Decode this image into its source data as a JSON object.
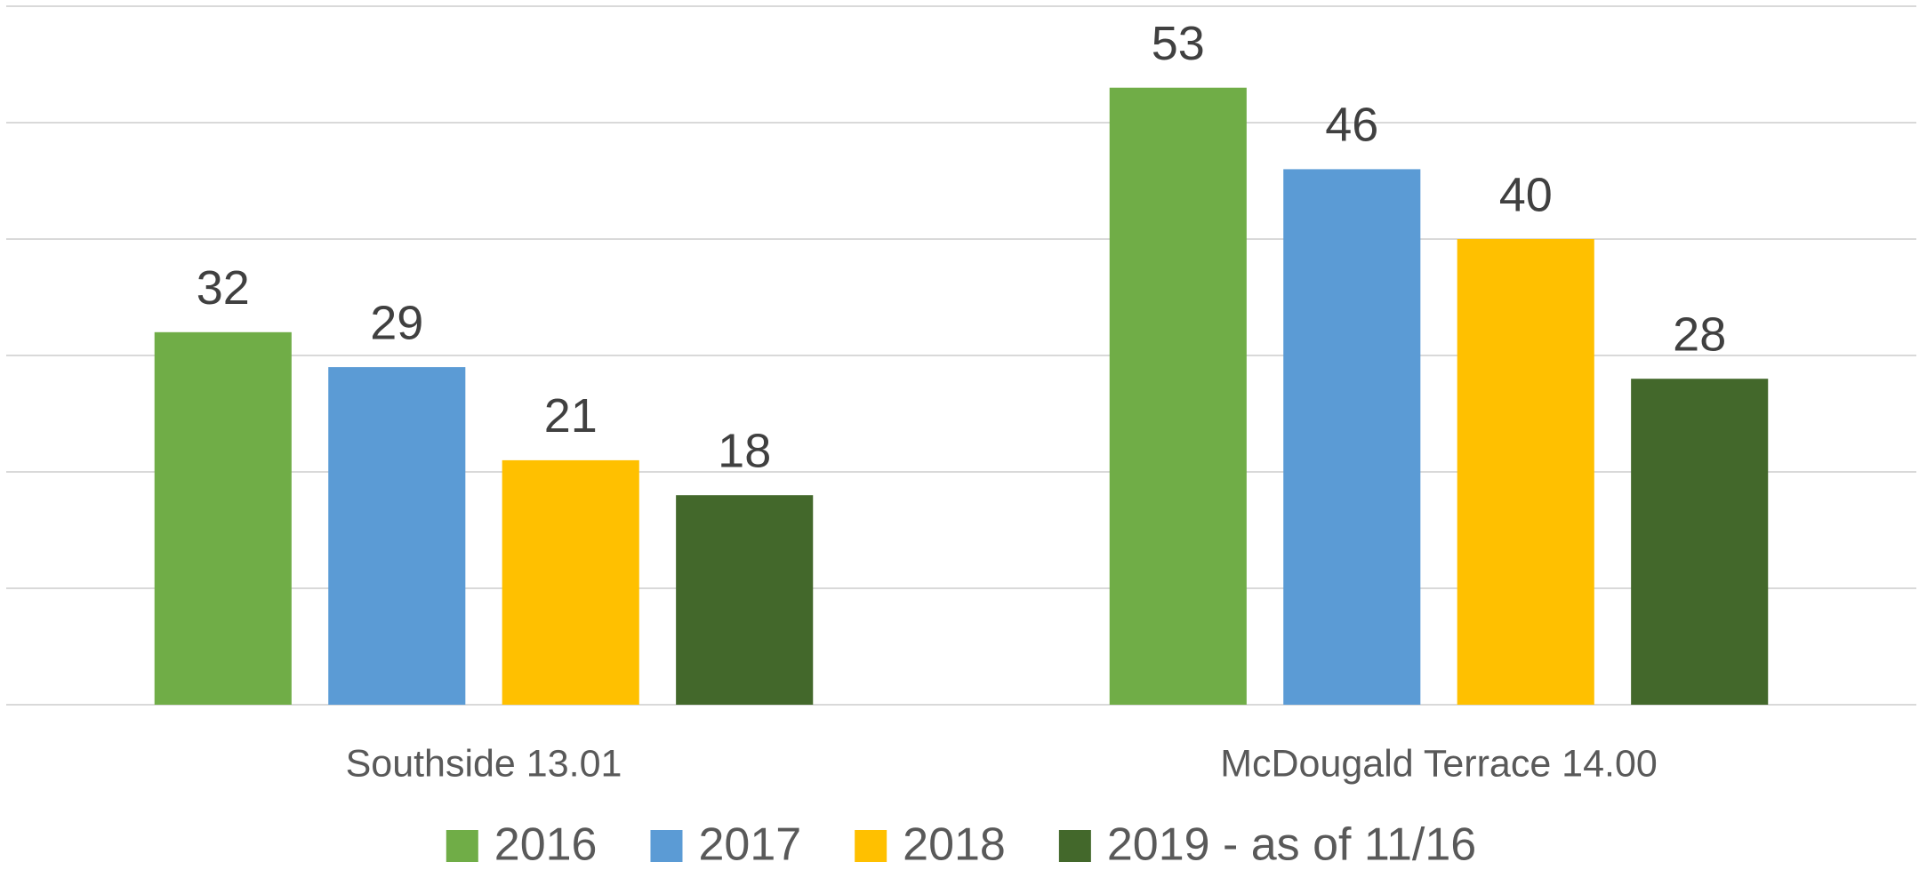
{
  "chart_data": {
    "type": "bar",
    "categories": [
      "Southside 13.01",
      "McDougald Terrace 14.00"
    ],
    "series": [
      {
        "name": "2016",
        "color": "#70ad47",
        "values": [
          32,
          53
        ]
      },
      {
        "name": "2017",
        "color": "#5b9bd5",
        "values": [
          29,
          46
        ]
      },
      {
        "name": "2018",
        "color": "#ffc000",
        "values": [
          21,
          40
        ]
      },
      {
        "name": "2019 - as of 11/16",
        "color": "#43682b",
        "values": [
          18,
          28
        ]
      }
    ],
    "ylim": [
      0,
      60
    ],
    "yticks": [
      0,
      10,
      20,
      30,
      40,
      50,
      60
    ],
    "grid": true,
    "legend": "bottom"
  }
}
